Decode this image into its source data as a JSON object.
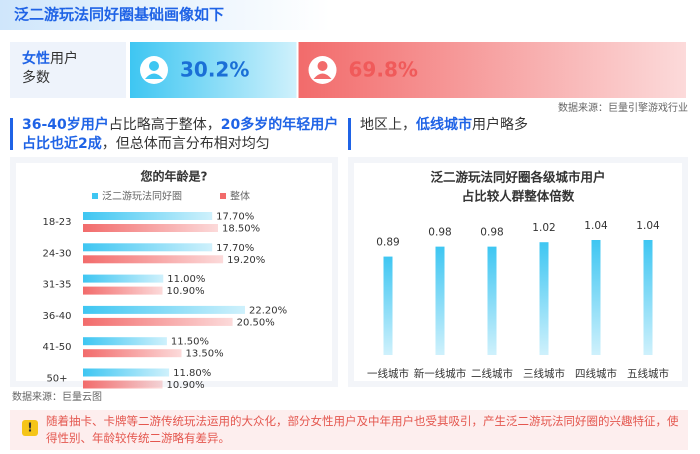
{
  "title": "泛二游玩法同好圈基础画像如下",
  "gender": {
    "label": [
      {
        "text": "女性",
        "em": true
      },
      {
        "text": "用户多数"
      }
    ],
    "values": [
      30.2,
      69.8
    ],
    "value_labels": [
      "30.2%",
      "69.8%"
    ],
    "colors": [
      "#3ec6f2",
      "#f26b6b"
    ],
    "source": "数据来源：巨量引擎游戏行业"
  },
  "sections": [
    {
      "heading": [
        {
          "text": "36-40岁用户",
          "em": true
        },
        {
          "text": "占比略高于整体，"
        },
        {
          "text": "20多岁的年轻用户占比也近2成",
          "em": true
        },
        {
          "text": "，但总体而言分布相对均匀"
        }
      ],
      "source": "数据来源：巨量云图"
    },
    {
      "heading": [
        {
          "text": "地区上，"
        },
        {
          "text": "低线城市",
          "em": true
        },
        {
          "text": "用户略多"
        }
      ]
    }
  ],
  "chart_data": [
    {
      "type": "hbar",
      "title": "您的年龄是?",
      "categories": [
        "18-23",
        "24-30",
        "31-35",
        "36-40",
        "41-50",
        "50+"
      ],
      "series": [
        {
          "name": "泛二游玩法同好圈",
          "color": "#3ec6f2",
          "values": [
            17.7,
            17.7,
            11.0,
            22.2,
            11.5,
            11.8
          ],
          "value_labels": [
            "17.70%",
            "17.70%",
            "11.00%",
            "22.20%",
            "11.50%",
            "11.80%"
          ]
        },
        {
          "name": "整体",
          "color": "#f26b6b",
          "values": [
            18.5,
            19.2,
            10.9,
            20.5,
            13.5,
            10.9
          ],
          "value_labels": [
            "18.50%",
            "19.20%",
            "10.90%",
            "20.50%",
            "13.50%",
            "10.90%"
          ]
        }
      ]
    },
    {
      "type": "bar",
      "title": [
        "泛二游玩法同好圈各级城市用户",
        "占比较人群整体倍数"
      ],
      "categories": [
        "一线城市",
        "新一线城市",
        "二线城市",
        "三线城市",
        "四线城市",
        "五线城市"
      ],
      "values": [
        0.89,
        0.98,
        0.98,
        1.02,
        1.04,
        1.04
      ],
      "color": "#3ec6f2"
    }
  ],
  "note": "随着抽卡、卡牌等二游传统玩法运用的大众化，部分女性用户及中年用户也受其吸引，产生泛二游玩法同好圈的兴趣特征，使得性别、年龄较传统二游略有差异。"
}
